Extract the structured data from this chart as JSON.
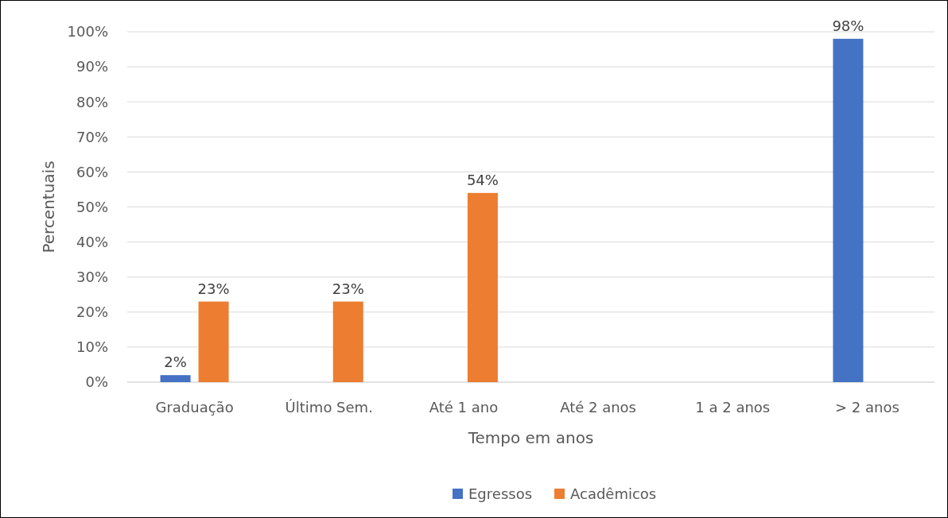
{
  "chart_data": {
    "type": "bar",
    "xlabel": "Tempo em anos",
    "ylabel": "Percentuais",
    "categories": [
      "Graduação",
      "Último Sem.",
      "Até 1 ano",
      "Até 2 anos",
      "1 a 2 anos",
      "> 2 anos"
    ],
    "series": [
      {
        "name": "Egressos",
        "color": "#4472c4",
        "values": [
          2,
          null,
          null,
          null,
          null,
          98
        ],
        "value_labels": [
          "2%",
          null,
          null,
          null,
          null,
          "98%"
        ]
      },
      {
        "name": "Acadêmicos",
        "color": "#ed7d31",
        "values": [
          23,
          23,
          54,
          null,
          null,
          null
        ],
        "value_labels": [
          "23%",
          "23%",
          "54%",
          null,
          null,
          null
        ]
      }
    ],
    "ylim": [
      0,
      100
    ],
    "yticks": [
      {
        "value": 0,
        "label": "0%"
      },
      {
        "value": 10,
        "label": "10%"
      },
      {
        "value": 20,
        "label": "20%"
      },
      {
        "value": 30,
        "label": "30%"
      },
      {
        "value": 40,
        "label": "40%"
      },
      {
        "value": 50,
        "label": "50%"
      },
      {
        "value": 60,
        "label": "60%"
      },
      {
        "value": 70,
        "label": "70%"
      },
      {
        "value": 80,
        "label": "80%"
      },
      {
        "value": 90,
        "label": "90%"
      },
      {
        "value": 100,
        "label": "100%"
      }
    ],
    "grid": "y",
    "legend": "bottom"
  }
}
